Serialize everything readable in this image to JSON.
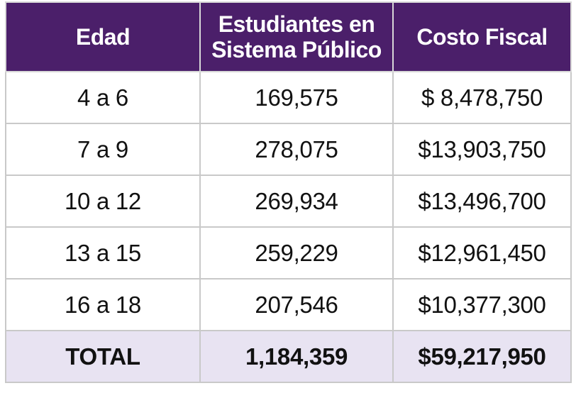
{
  "table": {
    "headers": {
      "edad": "Edad",
      "estudiantes_line1": "Estudiantes en",
      "estudiantes_line2": "Sistema Público",
      "costo": "Costo Fiscal"
    },
    "rows": [
      {
        "edad": "4 a 6",
        "estudiantes": "169,575",
        "costo": "$ 8,478,750"
      },
      {
        "edad": "7 a 9",
        "estudiantes": "278,075",
        "costo": "$13,903,750"
      },
      {
        "edad": "10 a 12",
        "estudiantes": "269,934",
        "costo": "$13,496,700"
      },
      {
        "edad": "13 a 15",
        "estudiantes": "259,229",
        "costo": "$12,961,450"
      },
      {
        "edad": "16 a 18",
        "estudiantes": "207,546",
        "costo": "$10,377,300"
      }
    ],
    "total": {
      "label": "TOTAL",
      "estudiantes": "1,184,359",
      "costo": "$59,217,950"
    }
  },
  "colors": {
    "header_bg": "#4b1f6a",
    "header_text": "#ffffff",
    "total_bg": "#e8e3f2",
    "border": "#c9c9c9"
  }
}
